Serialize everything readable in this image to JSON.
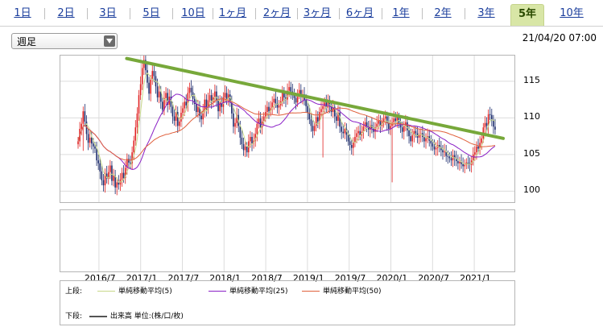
{
  "tabs": [
    {
      "label": "1日",
      "active": false
    },
    {
      "label": "2日",
      "active": false
    },
    {
      "label": "3日",
      "active": false
    },
    {
      "label": "5日",
      "active": false
    },
    {
      "label": "10日",
      "active": false
    },
    {
      "label": "1ヶ月",
      "active": false
    },
    {
      "label": "2ヶ月",
      "active": false
    },
    {
      "label": "3ヶ月",
      "active": false
    },
    {
      "label": "6ヶ月",
      "active": false
    },
    {
      "label": "1年",
      "active": false
    },
    {
      "label": "2年",
      "active": false
    },
    {
      "label": "3年",
      "active": false
    },
    {
      "label": "5年",
      "active": true
    },
    {
      "label": "10年",
      "active": false
    }
  ],
  "period_select": {
    "value": "週足"
  },
  "timestamp": "21/04/20 07:00",
  "chart_data": {
    "type": "candlestick",
    "y_ticks": [
      100,
      105,
      110,
      115
    ],
    "ylim": [
      98.5,
      118.5
    ],
    "x_ticks": [
      "2016/7",
      "2017/1",
      "2017/7",
      "2018/1",
      "2018/7",
      "2019/1",
      "2019/7",
      "2020/1",
      "2020/7",
      "2021/1"
    ],
    "x_start": "2016/4",
    "x_end": "2021/4",
    "grid": true,
    "closes": [
      106.8,
      108.5,
      109.2,
      110.9,
      109.5,
      107.8,
      106.6,
      107.3,
      106.5,
      106.1,
      105.8,
      104.2,
      103.8,
      102.7,
      101.5,
      100.8,
      102.4,
      101.7,
      102.6,
      103.5,
      101.4,
      102.1,
      100.5,
      101.2,
      100.9,
      101.6,
      102.5,
      101.8,
      103.2,
      104.4,
      103.9,
      103.8,
      105.3,
      106.9,
      108.7,
      110.6,
      113.1,
      114.6,
      116.8,
      117.9,
      116.5,
      114.8,
      113.3,
      115.2,
      116.4,
      115.7,
      114.3,
      112.8,
      113.6,
      112.2,
      111.1,
      112.7,
      113.4,
      111.8,
      112.9,
      111.5,
      110.2,
      109.6,
      110.8,
      108.9,
      109.5,
      110.7,
      111.3,
      112.2,
      111.7,
      113.4,
      114.1,
      113.5,
      112.6,
      111.9,
      110.8,
      111.5,
      110.3,
      109.8,
      110.9,
      112.5,
      111.2,
      112.4,
      113.1,
      112.2,
      112.8,
      113.6,
      112.4,
      110.9,
      112.1,
      111.5,
      112.8,
      113.4,
      112.6,
      113.2,
      112.1,
      110.6,
      108.8,
      109.3,
      110.4,
      108.9,
      107.3,
      106.4,
      105.6,
      106.1,
      105.3,
      106.8,
      107.4,
      106.5,
      106.9,
      107.8,
      109.2,
      109.9,
      108.7,
      109.5,
      110.2,
      110.8,
      111.5,
      110.9,
      111.3,
      112.1,
      112.6,
      112.0,
      111.4,
      111.7,
      112.3,
      113.4,
      112.8,
      112.5,
      113.7,
      114.2,
      113.6,
      113.1,
      112.7,
      112.1,
      113.3,
      113.8,
      112.9,
      113.2,
      112.4,
      111.6,
      110.7,
      109.8,
      108.9,
      108.2,
      108.9,
      110.1,
      109.5,
      110.8,
      111.2,
      111.6,
      112.1,
      111.4,
      112.3,
      111.6,
      110.8,
      111.5,
      110.2,
      109.6,
      110.7,
      108.8,
      108.1,
      107.9,
      108.5,
      107.7,
      106.8,
      106.3,
      105.9,
      106.7,
      107.4,
      107.9,
      108.2,
      107.6,
      108.1,
      108.8,
      109.4,
      108.8,
      108.4,
      109.0,
      108.6,
      108.1,
      108.7,
      109.2,
      109.6,
      108.9,
      109.4,
      109.9,
      110.2,
      109.3,
      108.5,
      108.9,
      109.4,
      109.9,
      109.6,
      110.1,
      109.2,
      108.7,
      108.1,
      108.9,
      109.4,
      108.3,
      107.5,
      106.8,
      107.6,
      108.2,
      107.9,
      107.3,
      107.7,
      107.9,
      107.4,
      106.8,
      107.2,
      107.5,
      106.9,
      106.5,
      106.1,
      105.7,
      105.9,
      106.3,
      106.0,
      105.6,
      105.3,
      105.4,
      104.8,
      104.7,
      104.5,
      104.2,
      104.9,
      104.5,
      104.1,
      103.8,
      104.0,
      103.7,
      103.4,
      103.6,
      103.9,
      103.8,
      103.6,
      104.2,
      105.0,
      105.3,
      106.1,
      105.8,
      106.6,
      107.2,
      108.7,
      109.3,
      108.9,
      110.5,
      110.4,
      109.7,
      108.8,
      108.4
    ],
    "spikes": [
      {
        "index": 145,
        "low": 104.6
      },
      {
        "index": 186,
        "low": 101.2
      },
      {
        "index": 3,
        "low": 105.5
      }
    ],
    "trendline": {
      "color": "#77a83a",
      "from": {
        "x": "2016/11",
        "y": 118.1
      },
      "to": {
        "x": "2021/4",
        "y": 107.2
      }
    },
    "series": [
      {
        "name": "単純移動平均(5)",
        "color": "#c8d88a",
        "window": 5
      },
      {
        "name": "単純移動平均(25)",
        "color": "#8a1fc6",
        "window": 25
      },
      {
        "name": "単純移動平均(50)",
        "color": "#e0603c",
        "window": 50
      }
    ]
  },
  "legend": {
    "upper_label": "上段:",
    "lower_label": "下段:",
    "volume_label": "出来高 単位:(株/口/枚)"
  }
}
